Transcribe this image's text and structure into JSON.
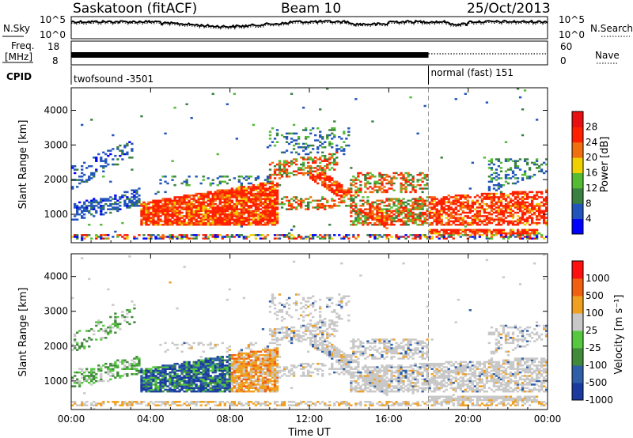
{
  "header": {
    "station": "Saskatoon (fitACF)",
    "beam": "Beam 10",
    "date": "25/Oct/2013"
  },
  "noise_panel": {
    "left_label": "N.Sky",
    "right_label": "N.Search",
    "left_ticks": [
      "10^5",
      "10^0"
    ],
    "right_ticks": [
      "10^5",
      "10^0"
    ]
  },
  "freq_panel": {
    "left_label_top": "Freq.",
    "left_label_bottom": "[MHz]",
    "left_ticks": [
      "18",
      "8"
    ],
    "right_label": "Nave",
    "right_ticks": [
      "60",
      "0"
    ]
  },
  "cpid_panel": {
    "label": "CPID",
    "modes": [
      {
        "name": "twofsound -3501",
        "start_hour": 0
      },
      {
        "name": "normal (fast) 151",
        "start_hour": 18
      }
    ]
  },
  "chart_data": [
    {
      "type": "heatmap",
      "quantity": "Power",
      "ylabel": "Slant Range [km]",
      "ylim": [
        180,
        4650
      ],
      "yticks": [
        "1000",
        "2000",
        "3000",
        "4000"
      ],
      "xlim": [
        0,
        24
      ],
      "colorbar": {
        "label": "Power [dB]",
        "ticks": [
          "4",
          "8",
          "12",
          "16",
          "20",
          "24",
          "28"
        ],
        "colors": [
          "#0000ff",
          "#2255bb",
          "#3a8040",
          "#55bb33",
          "#f0d000",
          "#f07010",
          "#ff2000",
          "#e81010"
        ]
      }
    },
    {
      "type": "heatmap",
      "quantity": "Velocity",
      "ylabel": "Slant Range [km]",
      "ylim": [
        180,
        4650
      ],
      "yticks": [
        "1000",
        "2000",
        "3000",
        "4000"
      ],
      "xlim": [
        0,
        24
      ],
      "xticks": [
        "00:00",
        "04:00",
        "08:00",
        "12:00",
        "16:00",
        "20:00",
        "00:00"
      ],
      "xlabel": "Time UT",
      "colorbar": {
        "label": "Velocity [m s⁻¹]",
        "ticks": [
          "1000",
          "500",
          "100",
          "25",
          "-25",
          "-100",
          "-500",
          "-1000"
        ],
        "colors": [
          "#1a3aa0",
          "#2f5fa8",
          "#408a3a",
          "#55c840",
          "#c8c8c8",
          "#f0a020",
          "#f06010",
          "#ff1010"
        ]
      }
    }
  ]
}
